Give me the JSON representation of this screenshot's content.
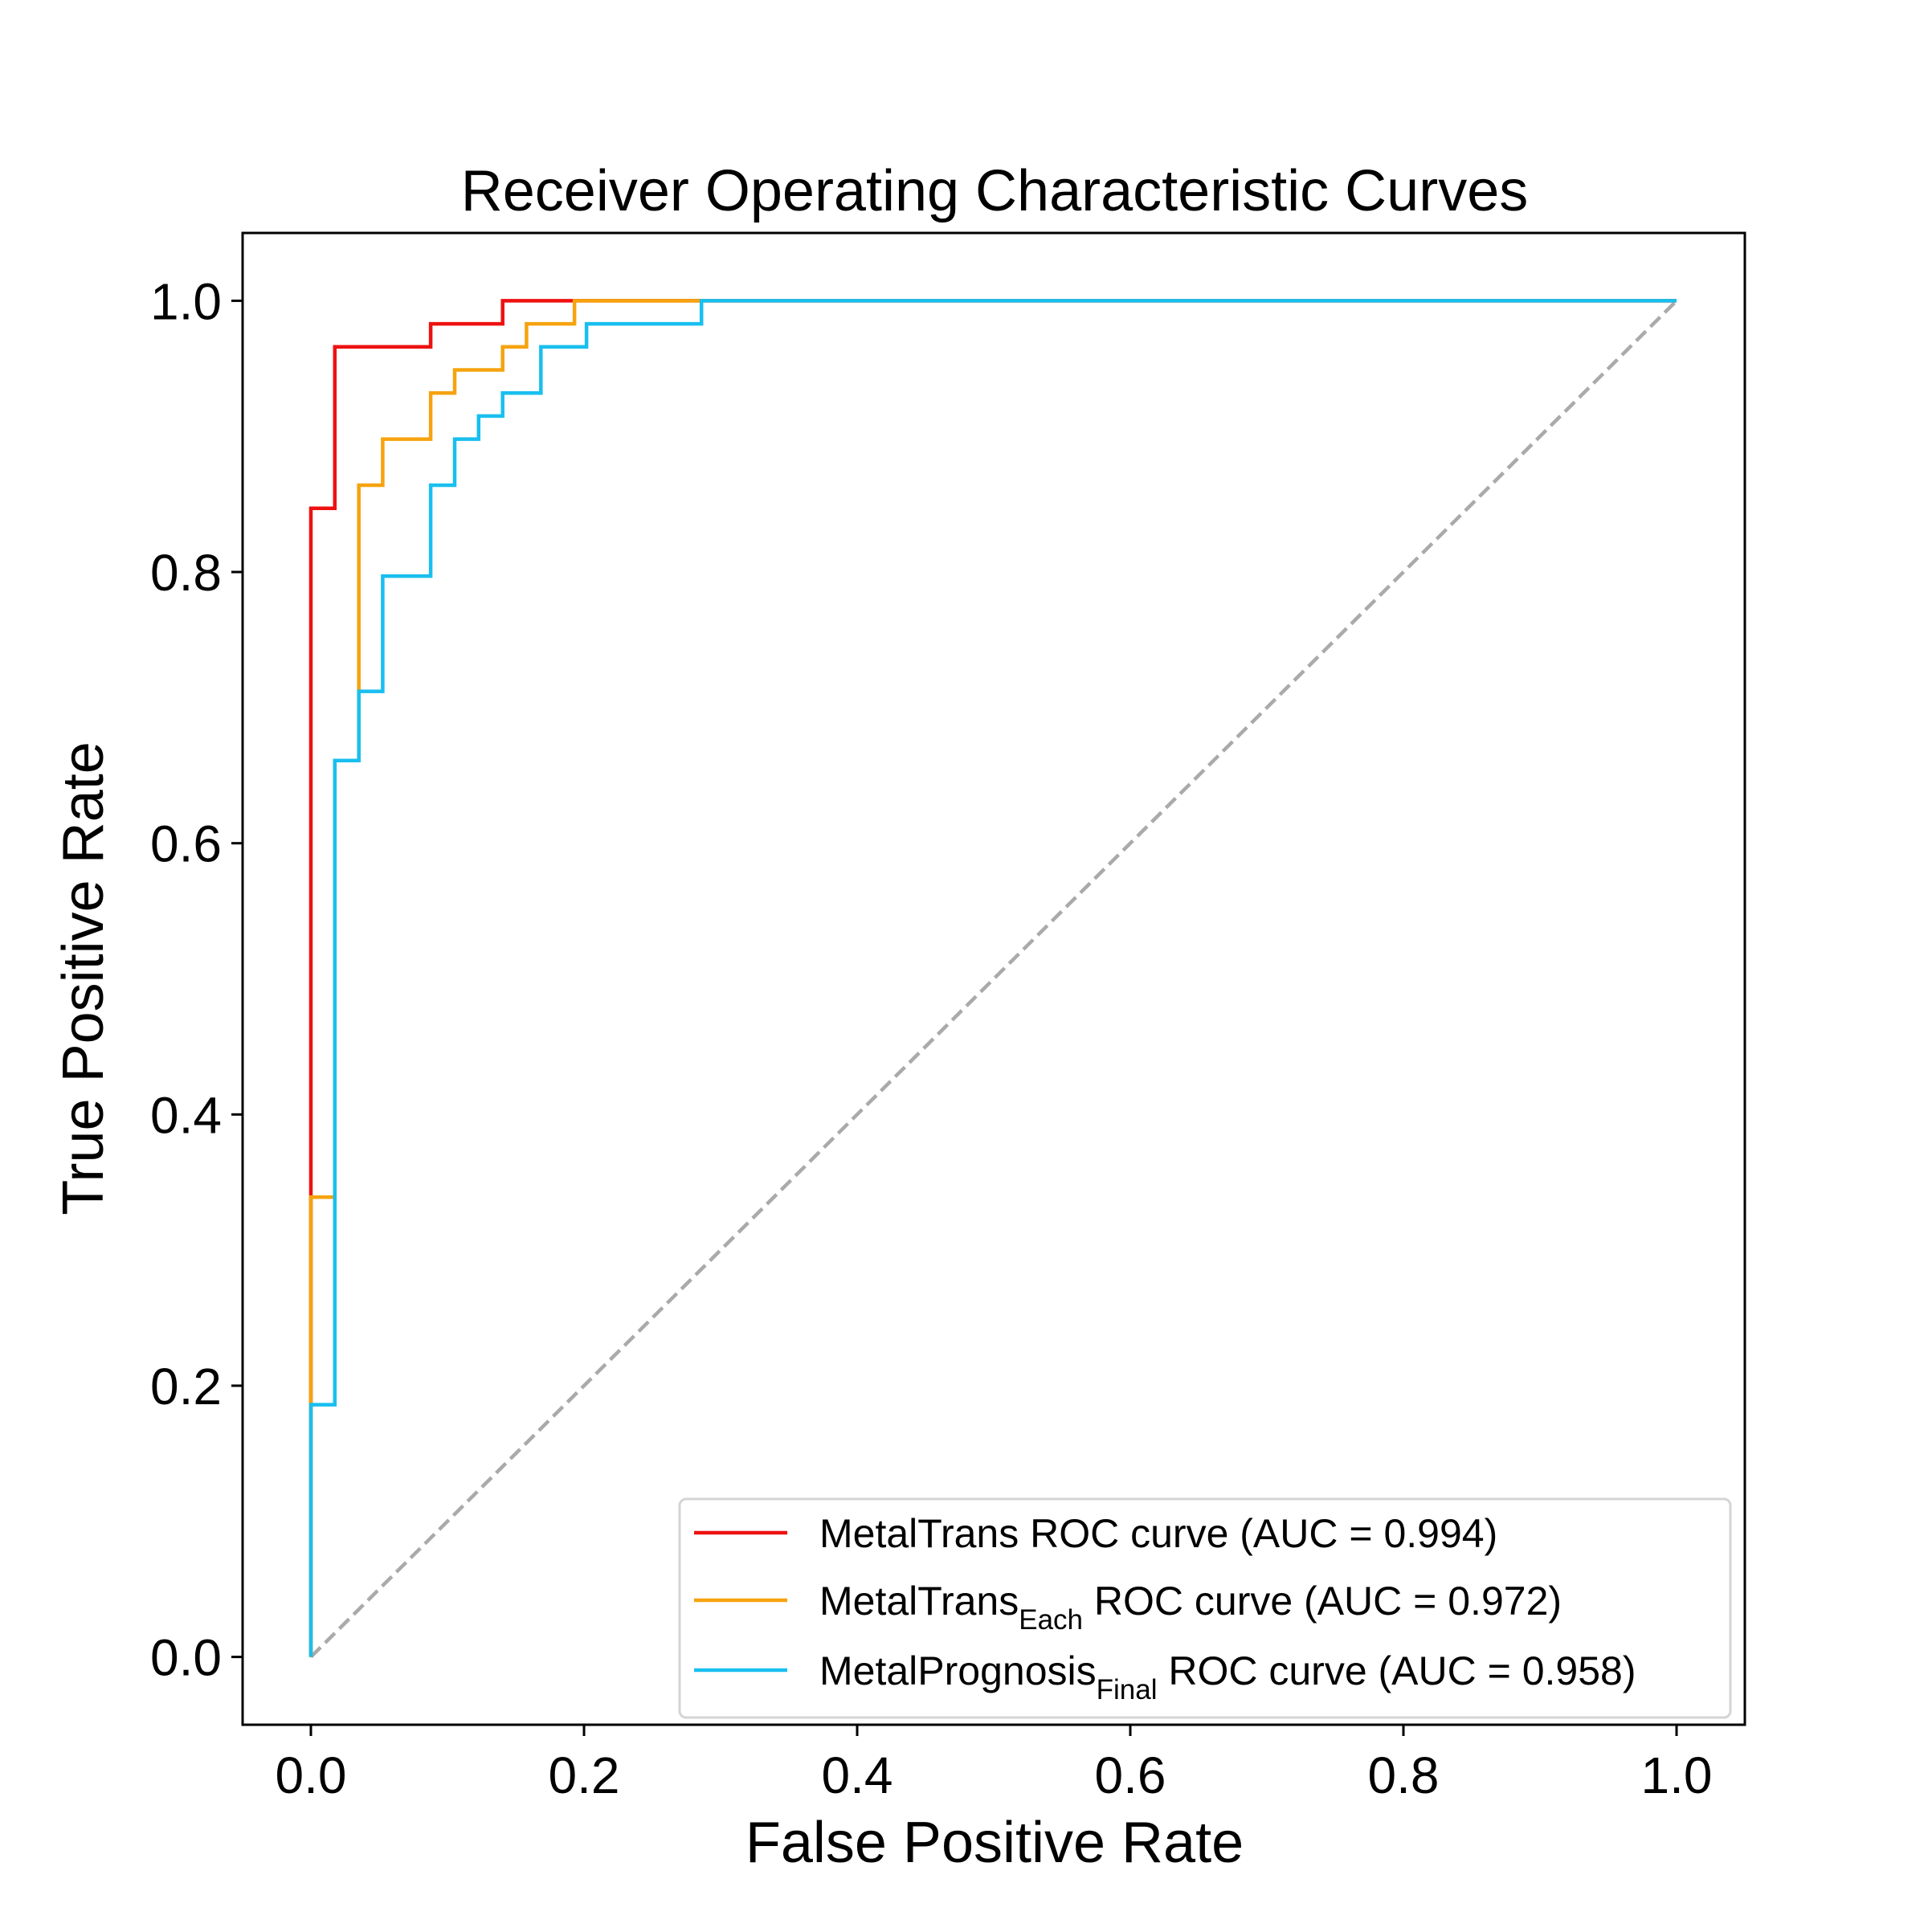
{
  "chart_data": {
    "type": "line",
    "title": "Receiver Operating Characteristic Curves",
    "xlabel": "False Positive Rate",
    "ylabel": "True Positive Rate",
    "xlim": [
      -0.05,
      1.05
    ],
    "ylim": [
      -0.05,
      1.05
    ],
    "xticks": [
      "0.0",
      "0.2",
      "0.4",
      "0.6",
      "0.8",
      "1.0"
    ],
    "yticks": [
      "0.0",
      "0.2",
      "0.4",
      "0.6",
      "0.8",
      "1.0"
    ],
    "grid": false,
    "legend_position": "lower-right",
    "series": [
      {
        "name": "MetalTrans",
        "name_subscript": "",
        "legend_suffix": " ROC curve (AUC = 0.994)",
        "color": "#ee1111",
        "x": [
          0,
          0,
          0,
          0.0175,
          0.0175,
          0.0877,
          0.0877,
          0.1404,
          0.1404,
          1
        ],
        "y": [
          0,
          0.339,
          0.847,
          0.847,
          0.966,
          0.966,
          0.983,
          0.983,
          1.0,
          1.0
        ]
      },
      {
        "name": "MetalTrans",
        "name_subscript": "Each",
        "legend_suffix": " ROC curve (AUC = 0.972)",
        "color": "#f5a30f",
        "x": [
          0,
          0,
          0.0175,
          0.0175,
          0.0351,
          0.0351,
          0.0526,
          0.0526,
          0.0877,
          0.0877,
          0.1053,
          0.1053,
          0.1404,
          0.1404,
          0.1579,
          0.1579,
          0.193,
          0.193,
          1
        ],
        "y": [
          0,
          0.339,
          0.339,
          0.661,
          0.661,
          0.864,
          0.864,
          0.898,
          0.898,
          0.932,
          0.932,
          0.949,
          0.949,
          0.966,
          0.966,
          0.983,
          0.983,
          1.0,
          1.0
        ]
      },
      {
        "name": "MetalPrognosis",
        "name_subscript": "Final",
        "legend_suffix": " ROC curve (AUC = 0.958)",
        "color": "#19bfef",
        "x": [
          0,
          0,
          0.0175,
          0.0175,
          0.0351,
          0.0351,
          0.0526,
          0.0526,
          0.0877,
          0.0877,
          0.1053,
          0.1053,
          0.1228,
          0.1228,
          0.1404,
          0.1404,
          0.1684,
          0.1684,
          0.2018,
          0.2018,
          0.286,
          0.286,
          1
        ],
        "y": [
          0,
          0.186,
          0.186,
          0.661,
          0.661,
          0.712,
          0.712,
          0.797,
          0.797,
          0.864,
          0.864,
          0.898,
          0.898,
          0.915,
          0.915,
          0.932,
          0.932,
          0.966,
          0.966,
          0.983,
          0.983,
          1.0,
          1.0
        ]
      }
    ],
    "reference_line": {
      "style": "dashed",
      "color": "#aaaaaa",
      "x": [
        0,
        1
      ],
      "y": [
        0,
        1
      ]
    }
  }
}
